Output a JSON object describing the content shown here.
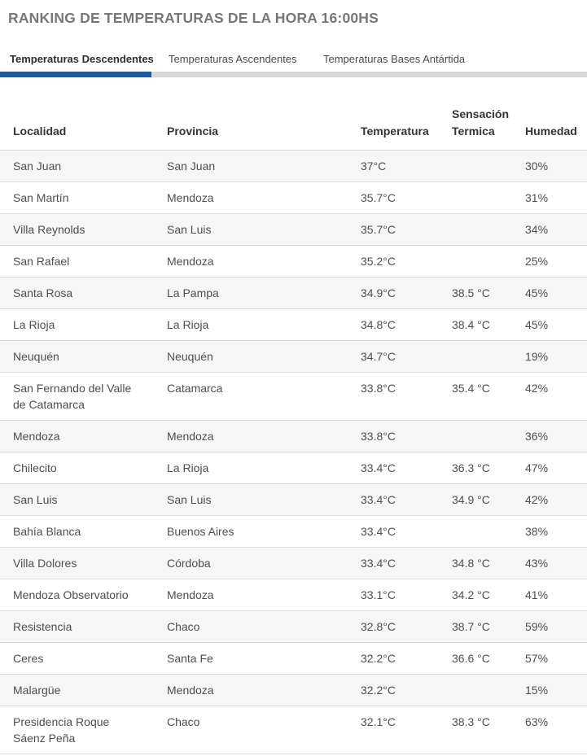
{
  "page": {
    "title": "RANKING DE TEMPERATURAS DE LA HORA 16:00HS"
  },
  "tabs": [
    {
      "label": "Temperaturas Descendentes",
      "active": true
    },
    {
      "label": "Temperaturas Ascendentes",
      "active": false
    },
    {
      "label": "Temperaturas Bases Antártida",
      "active": false
    }
  ],
  "colors": {
    "accent_blue": "#1e5a9b",
    "tab_bar_gray": "#d8d8d8",
    "row_stripe_gray": "#f6f6f6",
    "divider_gray": "#dcddde",
    "title_gray": "#76777a",
    "header_text": "#333436",
    "body_text": "#4d4f53"
  },
  "table": {
    "headers": [
      "Localidad",
      "Provincia",
      "Temperatura",
      "Sensación\nTermica",
      "Humedad"
    ],
    "rows": [
      {
        "localidad": "San Juan",
        "provincia": "San Juan",
        "temperatura": "37°C",
        "sensacion": "",
        "humedad": "30%"
      },
      {
        "localidad": "San Martín",
        "provincia": "Mendoza",
        "temperatura": "35.7°C",
        "sensacion": "",
        "humedad": "31%"
      },
      {
        "localidad": "Villa Reynolds",
        "provincia": "San Luis",
        "temperatura": "35.7°C",
        "sensacion": "",
        "humedad": "34%"
      },
      {
        "localidad": "San Rafael",
        "provincia": "Mendoza",
        "temperatura": "35.2°C",
        "sensacion": "",
        "humedad": "25%"
      },
      {
        "localidad": "Santa Rosa",
        "provincia": "La Pampa",
        "temperatura": "34.9°C",
        "sensacion": "38.5 °C",
        "humedad": "45%"
      },
      {
        "localidad": "La Rioja",
        "provincia": "La Rioja",
        "temperatura": "34.8°C",
        "sensacion": "38.4 °C",
        "humedad": "45%"
      },
      {
        "localidad": "Neuquén",
        "provincia": "Neuquén",
        "temperatura": "34.7°C",
        "sensacion": "",
        "humedad": "19%"
      },
      {
        "localidad": "San Fernando del Valle de Catamarca",
        "provincia": "Catamarca",
        "temperatura": "33.8°C",
        "sensacion": "35.4 °C",
        "humedad": "42%"
      },
      {
        "localidad": "Mendoza",
        "provincia": "Mendoza",
        "temperatura": "33.8°C",
        "sensacion": "",
        "humedad": "36%"
      },
      {
        "localidad": "Chilecito",
        "provincia": "La Rioja",
        "temperatura": "33.4°C",
        "sensacion": "36.3 °C",
        "humedad": "47%"
      },
      {
        "localidad": "San Luis",
        "provincia": "San Luis",
        "temperatura": "33.4°C",
        "sensacion": "34.9 °C",
        "humedad": "42%"
      },
      {
        "localidad": "Bahía Blanca",
        "provincia": "Buenos Aires",
        "temperatura": "33.4°C",
        "sensacion": "",
        "humedad": "38%"
      },
      {
        "localidad": "Villa Dolores",
        "provincia": "Córdoba",
        "temperatura": "33.4°C",
        "sensacion": "34.8 °C",
        "humedad": "43%"
      },
      {
        "localidad": "Mendoza Observatorio",
        "provincia": "Mendoza",
        "temperatura": "33.1°C",
        "sensacion": "34.2 °C",
        "humedad": "41%"
      },
      {
        "localidad": "Resistencia",
        "provincia": "Chaco",
        "temperatura": "32.8°C",
        "sensacion": "38.7 °C",
        "humedad": "59%"
      },
      {
        "localidad": "Ceres",
        "provincia": "Santa Fe",
        "temperatura": "32.2°C",
        "sensacion": "36.6 °C",
        "humedad": "57%"
      },
      {
        "localidad": "Malargüe",
        "provincia": "Mendoza",
        "temperatura": "32.2°C",
        "sensacion": "",
        "humedad": "15%"
      },
      {
        "localidad": "Presidencia Roque Sáenz Peña",
        "provincia": "Chaco",
        "temperatura": "32.1°C",
        "sensacion": "38.3 °C",
        "humedad": "63%"
      }
    ]
  }
}
